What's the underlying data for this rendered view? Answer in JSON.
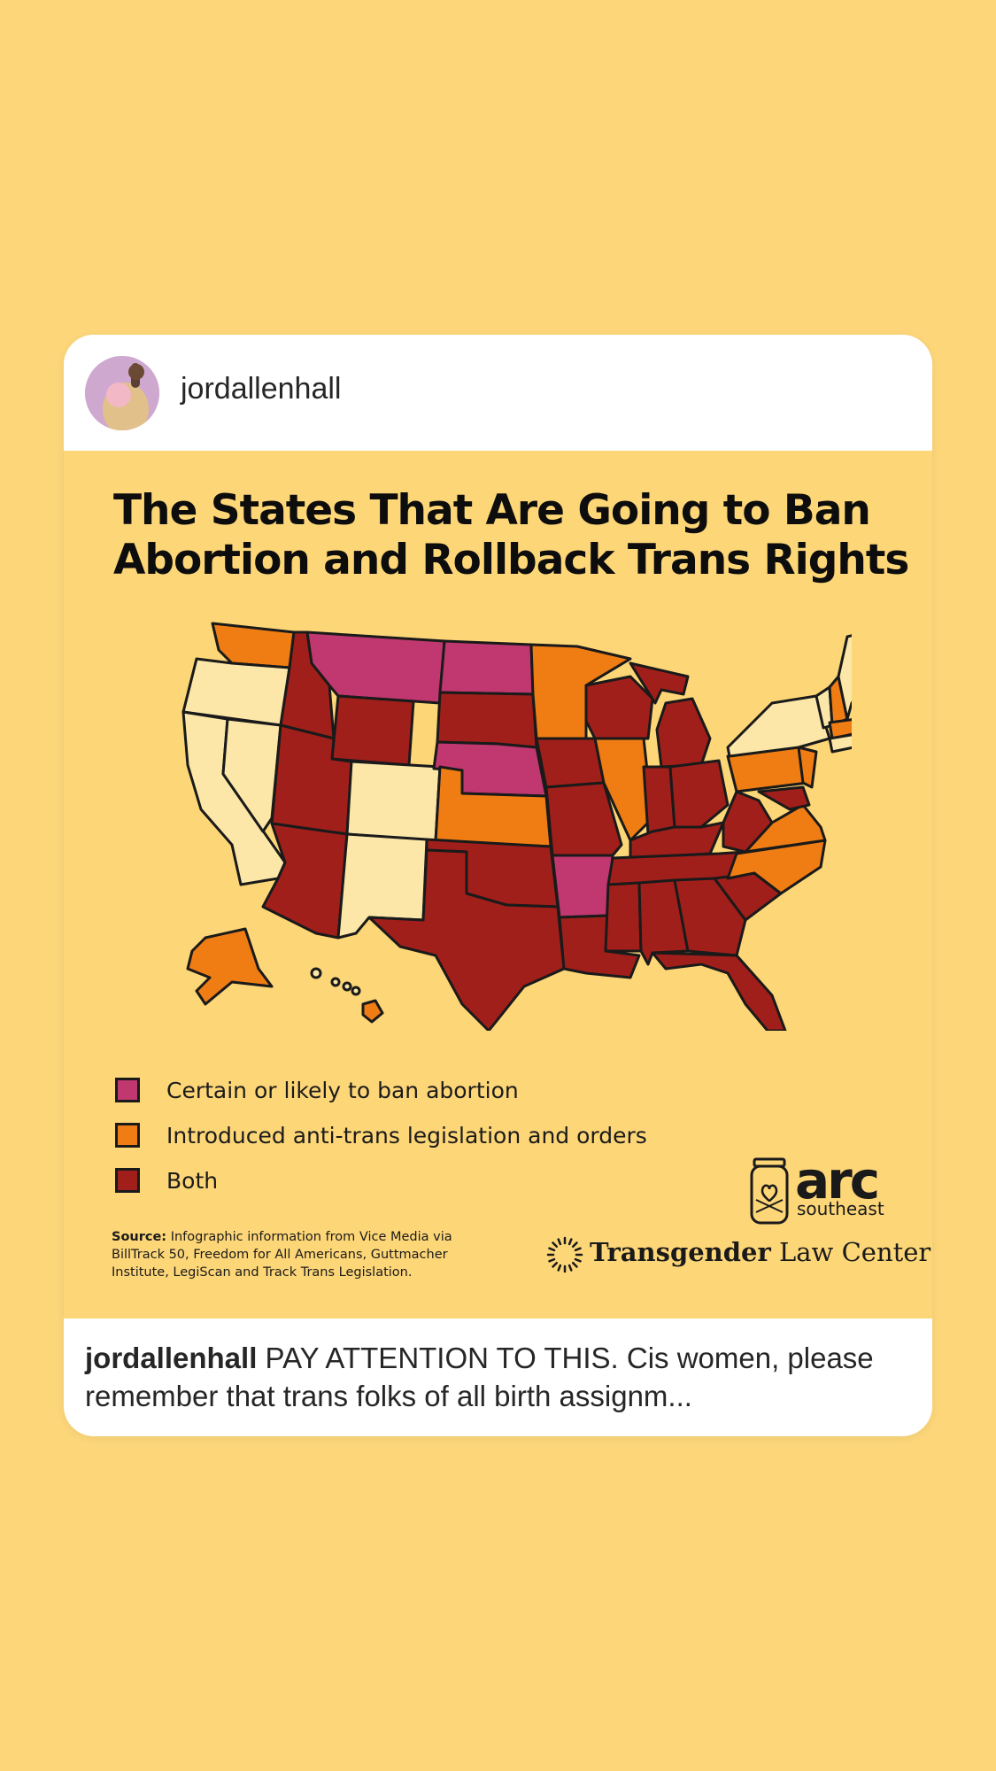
{
  "post": {
    "username": "jordallenhall",
    "title_line1": "The States That Are Going to Ban",
    "title_line2": "Abortion and Rollback Trans Rights",
    "legend": [
      {
        "label": "Certain or likely to ban abortion",
        "color": "#C0386F"
      },
      {
        "label": "Introduced anti-trans legislation and orders",
        "color": "#EF7D14"
      },
      {
        "label": "Both",
        "color": "#A11F1A"
      }
    ],
    "no_category_color": "#FCE7A8",
    "source_label": "Source:",
    "source_text": "Infographic information from Vice Media via BillTrack 50, Freedom for All Americans, Guttmacher Institute, LegiScan and Track Trans Legislation.",
    "arc_logo_word": "arc",
    "arc_logo_sub": "southeast",
    "tlc_bold": "Transgender",
    "tlc_rest": "Law Center"
  },
  "caption": {
    "username": "jordallenhall",
    "text": "PAY ATTENTION TO THIS. Cis women, please remember that trans folks of all birth assignm..."
  }
}
